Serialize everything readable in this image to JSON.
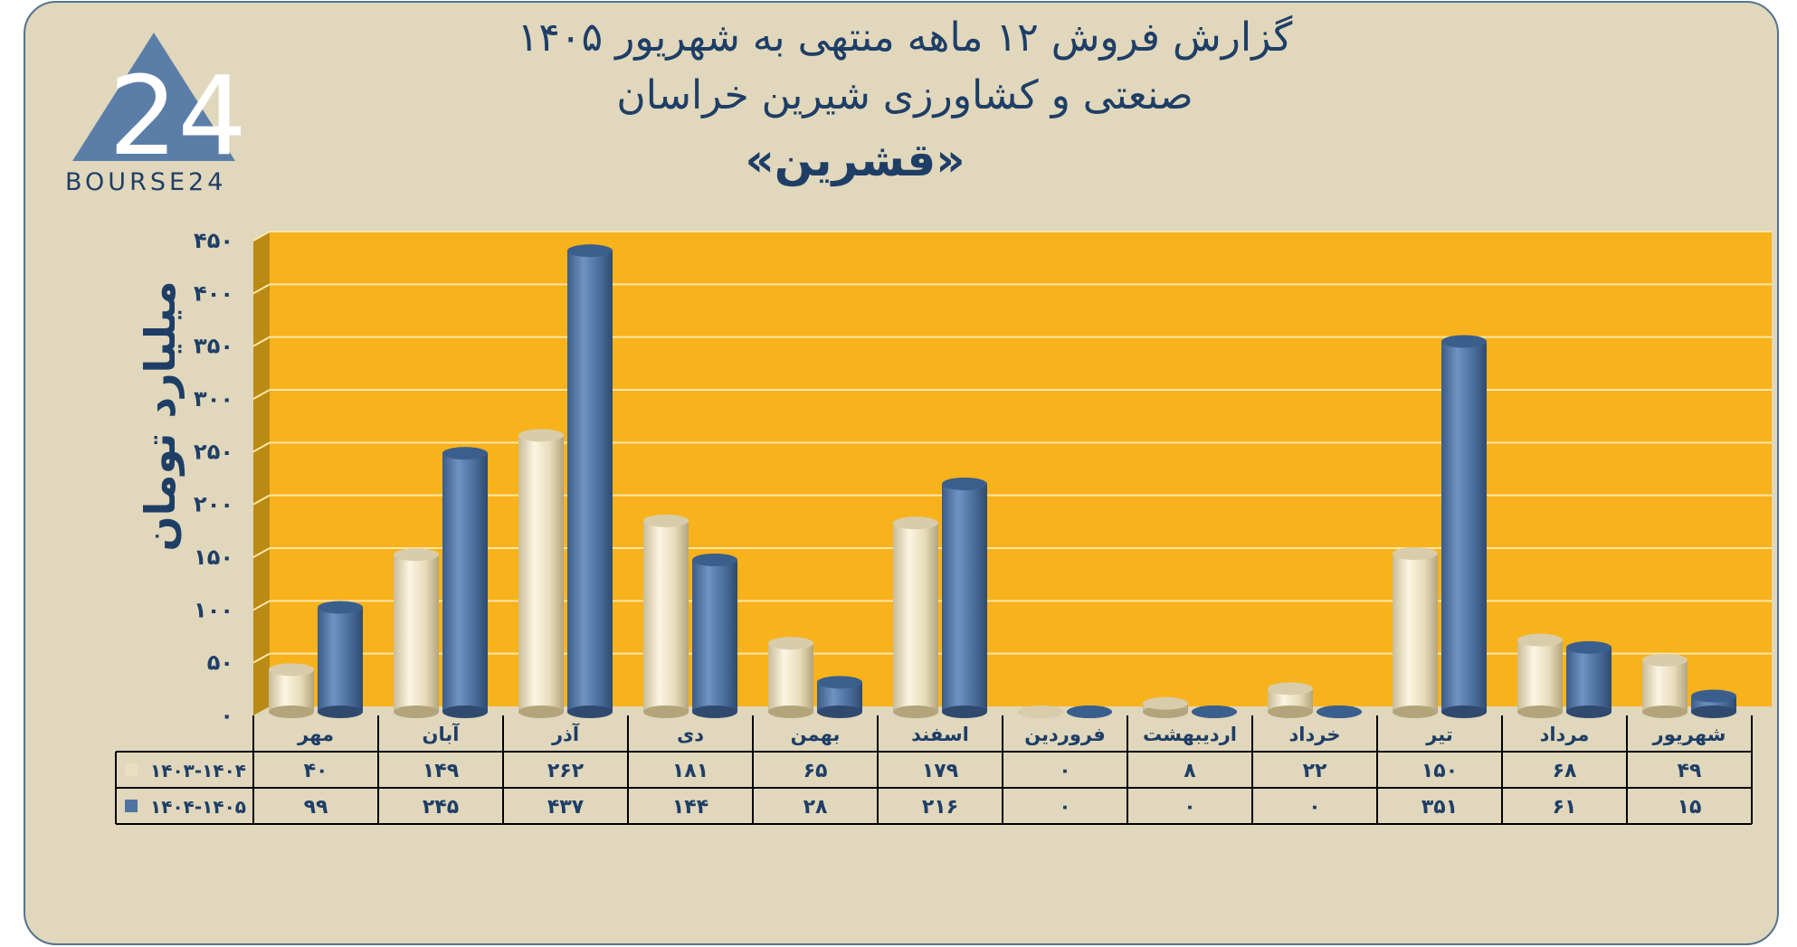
{
  "header": {
    "title_line1": "گزارش  فروش ۱۲ ماهه منتهی به شهریور ۱۴۰۵",
    "title_line2": "صنعتی و کشاورزی شیرین خراسان",
    "title_line3": "«قشرین»"
  },
  "logo": {
    "text": "BOURSE24",
    "mark": "24"
  },
  "colors": {
    "panel": "#e0d7bc",
    "plot_bg": "#f8b21b",
    "series1": "#e9dfc0",
    "series2": "#4f74a2",
    "text": "#1e3e66"
  },
  "chart_data": {
    "type": "bar",
    "ylabel": "میلیارد تومان",
    "ylim": [
      0,
      450
    ],
    "yticks": [
      "۰",
      "۵۰",
      "۱۰۰",
      "۱۵۰",
      "۲۰۰",
      "۲۵۰",
      "۳۰۰",
      "۳۵۰",
      "۴۰۰",
      "۴۵۰"
    ],
    "grid": true,
    "categories": [
      "مهر",
      "آبان",
      "آذر",
      "دی",
      "بهمن",
      "اسفند",
      "فروردین",
      "اردیبهشت",
      "خرداد",
      "تیر",
      "مرداد",
      "شهریور"
    ],
    "series": [
      {
        "name": "۱۴۰۳-۱۴۰۴",
        "values": [
          40,
          149,
          262,
          181,
          65,
          179,
          0,
          8,
          22,
          150,
          68,
          49
        ],
        "labels": [
          "۴۰",
          "۱۴۹",
          "۲۶۲",
          "۱۸۱",
          "۶۵",
          "۱۷۹",
          "۰",
          "۸",
          "۲۲",
          "۱۵۰",
          "۶۸",
          "۴۹"
        ]
      },
      {
        "name": "۱۴۰۴-۱۴۰۵",
        "values": [
          99,
          245,
          437,
          144,
          28,
          216,
          0,
          0,
          0,
          351,
          61,
          15
        ],
        "labels": [
          "۹۹",
          "۲۴۵",
          "۴۳۷",
          "۱۴۴",
          "۲۸",
          "۲۱۶",
          "۰",
          "۰",
          "۰",
          "۳۵۱",
          "۶۱",
          "۱۵"
        ]
      }
    ]
  }
}
